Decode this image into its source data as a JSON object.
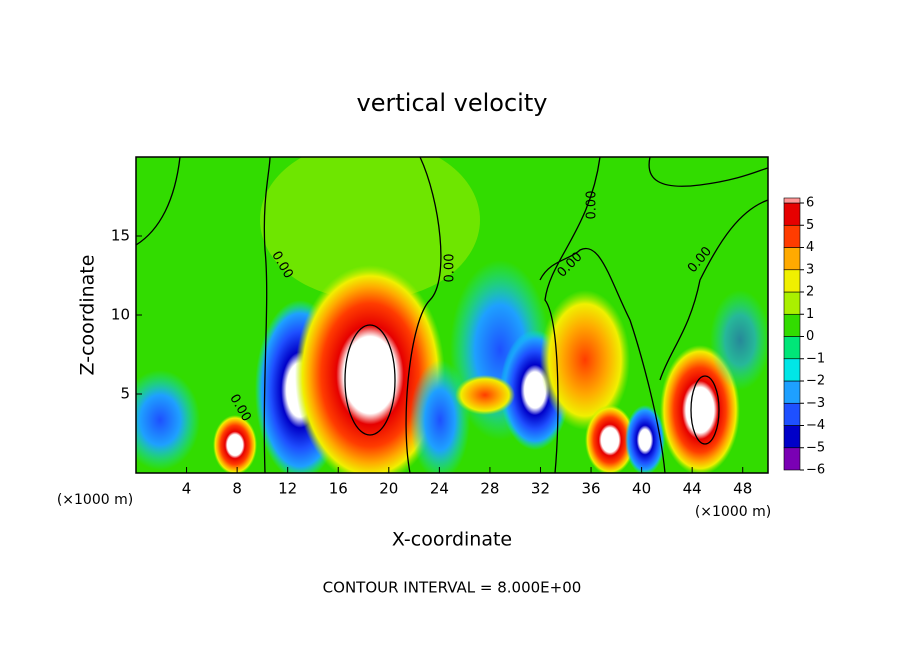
{
  "chart_data": {
    "type": "contour",
    "title": "vertical velocity",
    "xlabel": "X-coordinate",
    "ylabel": "Z-coordinate",
    "x_unit_label": "(×1000 m)",
    "xlim": [
      0,
      50
    ],
    "xticks": [
      4,
      8,
      12,
      16,
      20,
      24,
      28,
      32,
      36,
      40,
      44,
      48
    ],
    "ylim": [
      0,
      20
    ],
    "yticks": [
      5,
      10,
      15
    ],
    "contour_label": "0.00",
    "footnote": "CONTOUR INTERVAL = 8.000E+00",
    "colorbar": {
      "ticks": [
        {
          "value": -6,
          "label": "−6"
        },
        {
          "value": -5,
          "label": "−5"
        },
        {
          "value": -4,
          "label": "−4"
        },
        {
          "value": -3,
          "label": "−3"
        },
        {
          "value": -2,
          "label": "−2"
        },
        {
          "value": -1,
          "label": "−1"
        },
        0,
        1,
        2,
        3,
        4,
        5,
        6
      ],
      "colors": [
        "#7a00b4",
        "#0000c8",
        "#1e50ff",
        "#1ea0ff",
        "#00e6e6",
        "#00e678",
        "#32dc00",
        "#aaf000",
        "#f0f000",
        "#ffaa00",
        "#ff3c00",
        "#e60000",
        "#ff9696"
      ]
    }
  }
}
